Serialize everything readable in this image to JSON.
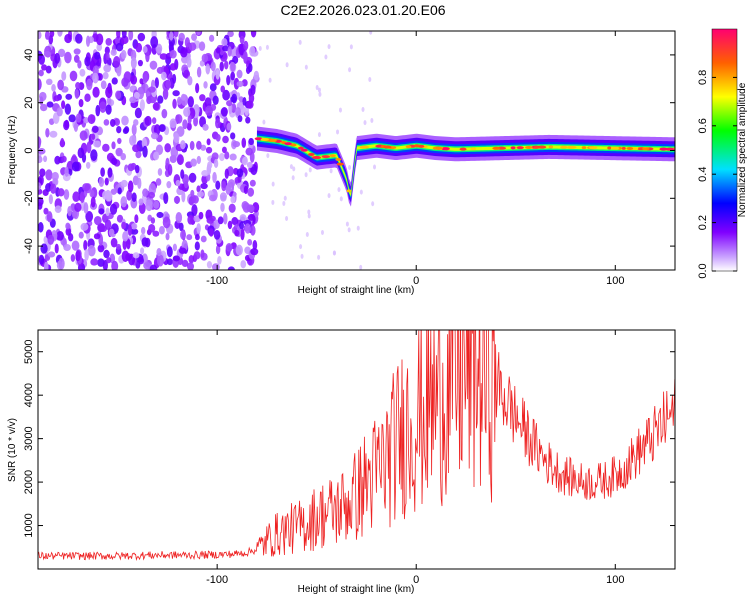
{
  "title": "C2E2.2026.023.01.20.E06",
  "chart_data": [
    {
      "type": "heatmap",
      "xlabel": "Height of straight line (km)",
      "ylabel": "Frequency (Hz)",
      "xlim": [
        -190,
        130
      ],
      "ylim": [
        -50,
        50
      ],
      "x_ticks": [
        -100,
        0,
        100
      ],
      "x_tick_labels": [
        "-100",
        "0",
        "100"
      ],
      "y_ticks": [
        -40,
        -20,
        0,
        20,
        40
      ],
      "y_tick_labels": [
        "-40",
        "-20",
        "0",
        "20",
        "40"
      ],
      "noise_region_x": [
        -190,
        -80
      ],
      "carrier_track": [
        {
          "x": -80,
          "y": 5
        },
        {
          "x": -70,
          "y": 4
        },
        {
          "x": -60,
          "y": 2
        },
        {
          "x": -50,
          "y": -3
        },
        {
          "x": -40,
          "y": -2
        },
        {
          "x": -35,
          "y": -12
        },
        {
          "x": -33,
          "y": -20
        },
        {
          "x": -30,
          "y": 1
        },
        {
          "x": -20,
          "y": 2
        },
        {
          "x": -10,
          "y": 1
        },
        {
          "x": 0,
          "y": 2
        },
        {
          "x": 10,
          "y": 1
        },
        {
          "x": 20,
          "y": 0.5
        },
        {
          "x": 67,
          "y": 1.5
        },
        {
          "x": 130,
          "y": 0.5
        }
      ],
      "colorbar": {
        "label": "Normalized spectral amplitude",
        "range": [
          0.0,
          1.0
        ],
        "ticks": [
          0.0,
          0.2,
          0.4,
          0.6,
          0.8
        ],
        "tick_labels": [
          "0.0",
          "0.2",
          "0.4",
          "0.6",
          "0.8"
        ]
      }
    },
    {
      "type": "line",
      "xlabel": "Height of straight line (km)",
      "ylabel": "SNR (10 * v/v)",
      "xlim": [
        -190,
        130
      ],
      "ylim": [
        0,
        5500
      ],
      "x_ticks": [
        -100,
        0,
        100
      ],
      "x_tick_labels": [
        "-100",
        "0",
        "100"
      ],
      "y_ticks": [
        1000,
        2000,
        3000,
        4000,
        5000
      ],
      "y_tick_labels": [
        "1000",
        "2000",
        "3000",
        "4000",
        "5000"
      ],
      "series": [
        {
          "name": "SNR",
          "color": "#ee2222",
          "x": [
            -190,
            -170,
            -150,
            -130,
            -110,
            -100,
            -90,
            -85,
            -80,
            -75,
            -70,
            -65,
            -60,
            -55,
            -50,
            -45,
            -40,
            -35,
            -30,
            -25,
            -20,
            -15,
            -10,
            -5,
            0,
            5,
            10,
            15,
            20,
            25,
            30,
            35,
            40,
            45,
            50,
            55,
            60,
            65,
            70,
            75,
            80,
            85,
            90,
            95,
            100,
            105,
            110,
            115,
            120,
            125,
            130
          ],
          "values": [
            300,
            300,
            300,
            320,
            320,
            330,
            350,
            380,
            450,
            650,
            800,
            900,
            950,
            1050,
            1200,
            1300,
            1350,
            1500,
            1700,
            2000,
            2200,
            2500,
            2900,
            3300,
            3500,
            3700,
            3900,
            4200,
            4400,
            4550,
            4600,
            4500,
            4250,
            3900,
            3500,
            3150,
            2800,
            2500,
            2300,
            2150,
            2050,
            2000,
            2000,
            2050,
            2150,
            2350,
            2600,
            2850,
            3100,
            3400,
            3650
          ]
        }
      ]
    }
  ]
}
